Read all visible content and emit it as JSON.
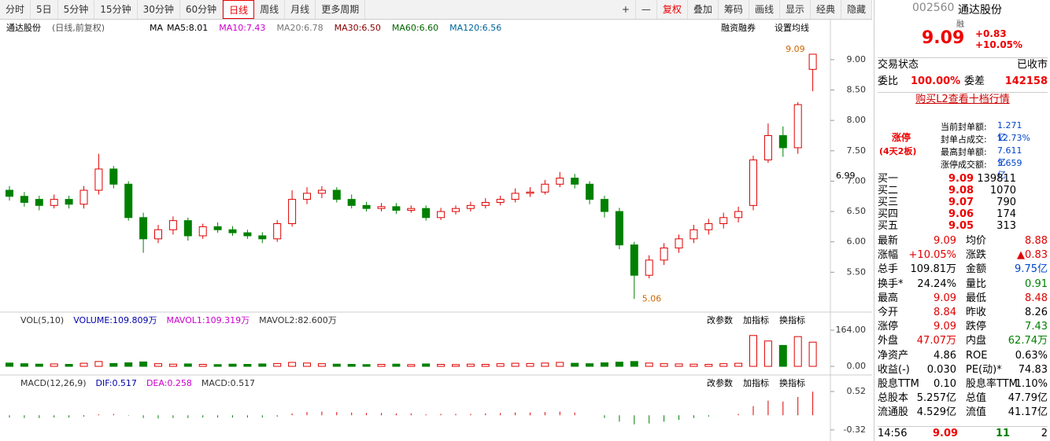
{
  "toolbar": {
    "periods": [
      "分时",
      "5日",
      "5分钟",
      "15分钟",
      "30分钟",
      "60分钟",
      "日线",
      "周线",
      "月线",
      "更多周期"
    ],
    "tools": [
      "+",
      "—",
      "复权",
      "叠加",
      "筹码",
      "画线",
      "显示",
      "经典",
      "隐藏"
    ]
  },
  "chart_data": {
    "type": "candlestick",
    "name": "通达股份",
    "mode": "(日线,前复权)",
    "ma_title": "MA",
    "ma": [
      {
        "text": "MA5:8.01",
        "color": "#000000"
      },
      {
        "text": "MA10:7.43",
        "color": "#cc00cc"
      },
      {
        "text": "MA20:6.78",
        "color": "#777777"
      },
      {
        "text": "MA30:6.50",
        "color": "#880000"
      },
      {
        "text": "MA60:6.60",
        "color": "#006600"
      },
      {
        "text": "MA120:6.56",
        "color": "#006699"
      }
    ],
    "links": [
      "融资融券",
      "设置均线"
    ],
    "ylim": [
      4.87,
      9.4
    ],
    "yticks": [
      {
        "value": 5.5,
        "label": "5.50"
      },
      {
        "value": 6,
        "label": "6.00"
      },
      {
        "value": 6.5,
        "label": "6.50"
      },
      {
        "value": 7,
        "label": "7.00"
      },
      {
        "value": 7.5,
        "label": "7.50"
      },
      {
        "value": 8,
        "label": "8.00"
      },
      {
        "value": 8.5,
        "label": "8.50"
      },
      {
        "value": 9,
        "label": "9.00"
      }
    ],
    "crosshair_label": "6.99",
    "high_label": "9.09",
    "low_label": "5.06",
    "up_color": "#e00000",
    "down_color": "#008000",
    "open": [
      6.85,
      6.75,
      6.7,
      6.6,
      6.7,
      6.62,
      6.85,
      7.2,
      6.95,
      6.4,
      6.05,
      6.2,
      6.35,
      6.1,
      6.25,
      6.2,
      6.15,
      6.1,
      6.05,
      6.3,
      6.7,
      6.8,
      6.85,
      6.7,
      6.6,
      6.55,
      6.58,
      6.52,
      6.55,
      6.4,
      6.5,
      6.55,
      6.6,
      6.65,
      6.7,
      6.8,
      6.82,
      6.95,
      7.05,
      6.95,
      6.7,
      6.5,
      5.95,
      5.45,
      5.7,
      5.9,
      6.05,
      6.2,
      6.3,
      6.4,
      6.6,
      7.35,
      7.75,
      7.55,
      8.84
    ],
    "high": [
      6.92,
      6.82,
      6.76,
      6.78,
      6.76,
      6.92,
      7.45,
      7.25,
      7.0,
      6.48,
      6.28,
      6.42,
      6.4,
      6.3,
      6.32,
      6.26,
      6.2,
      6.16,
      6.36,
      6.85,
      6.9,
      6.92,
      6.9,
      6.78,
      6.66,
      6.64,
      6.64,
      6.6,
      6.6,
      6.56,
      6.6,
      6.66,
      6.72,
      6.76,
      6.88,
      6.9,
      7.02,
      7.15,
      7.12,
      7.0,
      6.76,
      6.56,
      6.0,
      5.78,
      5.98,
      6.12,
      6.28,
      6.38,
      6.48,
      6.58,
      7.42,
      7.95,
      7.9,
      8.3,
      9.09
    ],
    "low": [
      6.68,
      6.58,
      6.52,
      6.55,
      6.55,
      6.55,
      6.78,
      6.88,
      6.35,
      5.82,
      5.98,
      6.12,
      6.02,
      6.05,
      6.15,
      6.1,
      6.05,
      5.98,
      6.0,
      6.25,
      6.62,
      6.72,
      6.65,
      6.55,
      6.5,
      6.5,
      6.46,
      6.48,
      6.35,
      6.36,
      6.45,
      6.5,
      6.55,
      6.6,
      6.65,
      6.74,
      6.78,
      6.9,
      6.88,
      6.62,
      6.4,
      5.88,
      5.06,
      5.4,
      5.62,
      5.82,
      5.98,
      6.12,
      6.22,
      6.32,
      6.52,
      7.3,
      7.4,
      7.45,
      8.48
    ],
    "close": [
      6.75,
      6.65,
      6.6,
      6.7,
      6.62,
      6.85,
      7.2,
      6.95,
      6.4,
      6.05,
      6.2,
      6.35,
      6.1,
      6.25,
      6.2,
      6.15,
      6.1,
      6.05,
      6.3,
      6.7,
      6.8,
      6.85,
      6.7,
      6.6,
      6.55,
      6.58,
      6.52,
      6.55,
      6.4,
      6.5,
      6.55,
      6.6,
      6.65,
      6.7,
      6.8,
      6.82,
      6.95,
      7.05,
      6.95,
      6.7,
      6.5,
      5.95,
      5.45,
      5.7,
      5.9,
      6.05,
      6.2,
      6.3,
      6.4,
      6.5,
      7.35,
      7.75,
      7.55,
      8.26,
      9.09
    ],
    "volume_panel": {
      "labels": [
        "VOL(5,10)",
        "VOLUME:109.809万",
        "MAVOL1:109.319万",
        "MAVOL2:82.600万"
      ],
      "ylim": [
        -32,
        182
      ],
      "yticks": [
        {
          "value": 0,
          "label": "0.00"
        },
        {
          "value": 164,
          "label": "164.00"
        }
      ],
      "values": [
        15,
        12,
        10,
        11,
        9,
        14,
        22,
        13,
        16,
        20,
        12,
        10,
        11,
        9,
        8,
        10,
        9,
        11,
        13,
        18,
        15,
        12,
        10,
        9,
        8,
        9,
        10,
        8,
        11,
        9,
        8,
        10,
        9,
        12,
        14,
        13,
        15,
        18,
        14,
        12,
        16,
        19,
        22,
        15,
        12,
        11,
        10,
        9,
        12,
        14,
        140,
        115,
        95,
        135,
        109.809
      ]
    },
    "macd_panel": {
      "labels": [
        "MACD(12,26,9)",
        "DIF:0.517",
        "DEA:0.258",
        "MACD:0.517"
      ],
      "ylim": [
        -0.46,
        0.83
      ],
      "yticks": [
        {
          "value": -0.32,
          "label": "-0.32"
        },
        {
          "value": 0.52,
          "label": "0.52"
        }
      ],
      "values": [
        -0.05,
        -0.06,
        -0.06,
        -0.05,
        -0.05,
        -0.03,
        0.02,
        0.03,
        -0.01,
        -0.06,
        -0.07,
        -0.06,
        -0.06,
        -0.05,
        -0.05,
        -0.05,
        -0.05,
        -0.05,
        -0.03,
        0.04,
        0.07,
        0.08,
        0.07,
        0.06,
        0.05,
        0.05,
        0.04,
        0.04,
        0.02,
        0.03,
        0.03,
        0.03,
        0.04,
        0.05,
        0.06,
        0.06,
        0.07,
        0.08,
        0.06,
        0.0,
        -0.06,
        -0.14,
        -0.2,
        -0.18,
        -0.14,
        -0.1,
        -0.06,
        -0.03,
        0.0,
        0.03,
        0.2,
        0.32,
        0.3,
        0.4,
        0.517
      ]
    },
    "panel_buttons": [
      "改参数",
      "加指标",
      "换指标"
    ]
  },
  "quote": {
    "code": "002560",
    "name": "通达股份",
    "tag": "融",
    "price": "9.09",
    "change": "+0.83",
    "pct": "+10.05%",
    "status": [
      "交易状态",
      "已收市"
    ],
    "ratio": [
      "委比",
      "100.00%",
      "委差",
      "142158"
    ],
    "l2_link": "购买L2查看十档行情",
    "limit": {
      "title": "涨停",
      "sub": "(4天2板)",
      "rows": [
        [
          "当前封单额:",
          "1.271亿"
        ],
        [
          "封单占成交:",
          "12.73%"
        ],
        [
          "最高封单额:",
          "7.611亿"
        ],
        [
          "涨停成交额:",
          "3.659亿"
        ]
      ]
    },
    "bids": [
      [
        "买一",
        "9.09",
        "139811"
      ],
      [
        "买二",
        "9.08",
        "1070"
      ],
      [
        "买三",
        "9.07",
        "790"
      ],
      [
        "买四",
        "9.06",
        "174"
      ],
      [
        "买五",
        "9.05",
        "313"
      ]
    ],
    "stats": [
      [
        "最新",
        "9.09",
        "#e00000",
        "均价",
        "8.88",
        "#e00000"
      ],
      [
        "涨幅",
        "+10.05%",
        "#e00000",
        "涨跌",
        "▲0.83",
        "#e00000"
      ],
      [
        "总手",
        "109.81万",
        "#000000",
        "金额",
        "9.75亿",
        "#0044cc"
      ],
      [
        "换手*",
        "24.24%",
        "#000000",
        "量比",
        "0.91",
        "#008000"
      ],
      [
        "最高",
        "9.09",
        "#e00000",
        "最低",
        "8.48",
        "#e00000"
      ],
      [
        "今开",
        "8.84",
        "#e00000",
        "昨收",
        "8.26",
        "#000000"
      ],
      [
        "涨停",
        "9.09",
        "#e00000",
        "跌停",
        "7.43",
        "#008000"
      ],
      [
        "外盘",
        "47.07万",
        "#e00000",
        "内盘",
        "62.74万",
        "#008000"
      ],
      [
        "净资产",
        "4.86",
        "#000000",
        "ROE",
        "0.63%",
        "#000000"
      ],
      [
        "收益(-)",
        "0.030",
        "#000000",
        "PE(动)*",
        "74.83",
        "#000000"
      ],
      [
        "股息TTM",
        "0.10",
        "#000000",
        "股息率TTM",
        "1.10%",
        "#000000"
      ],
      [
        "总股本",
        "5.257亿",
        "#000000",
        "总值",
        "47.79亿",
        "#000000"
      ],
      [
        "流通股",
        "4.529亿",
        "#000000",
        "流值",
        "41.17亿",
        "#000000"
      ]
    ],
    "tick": [
      "14:56",
      "9.09",
      "11",
      "2"
    ]
  }
}
